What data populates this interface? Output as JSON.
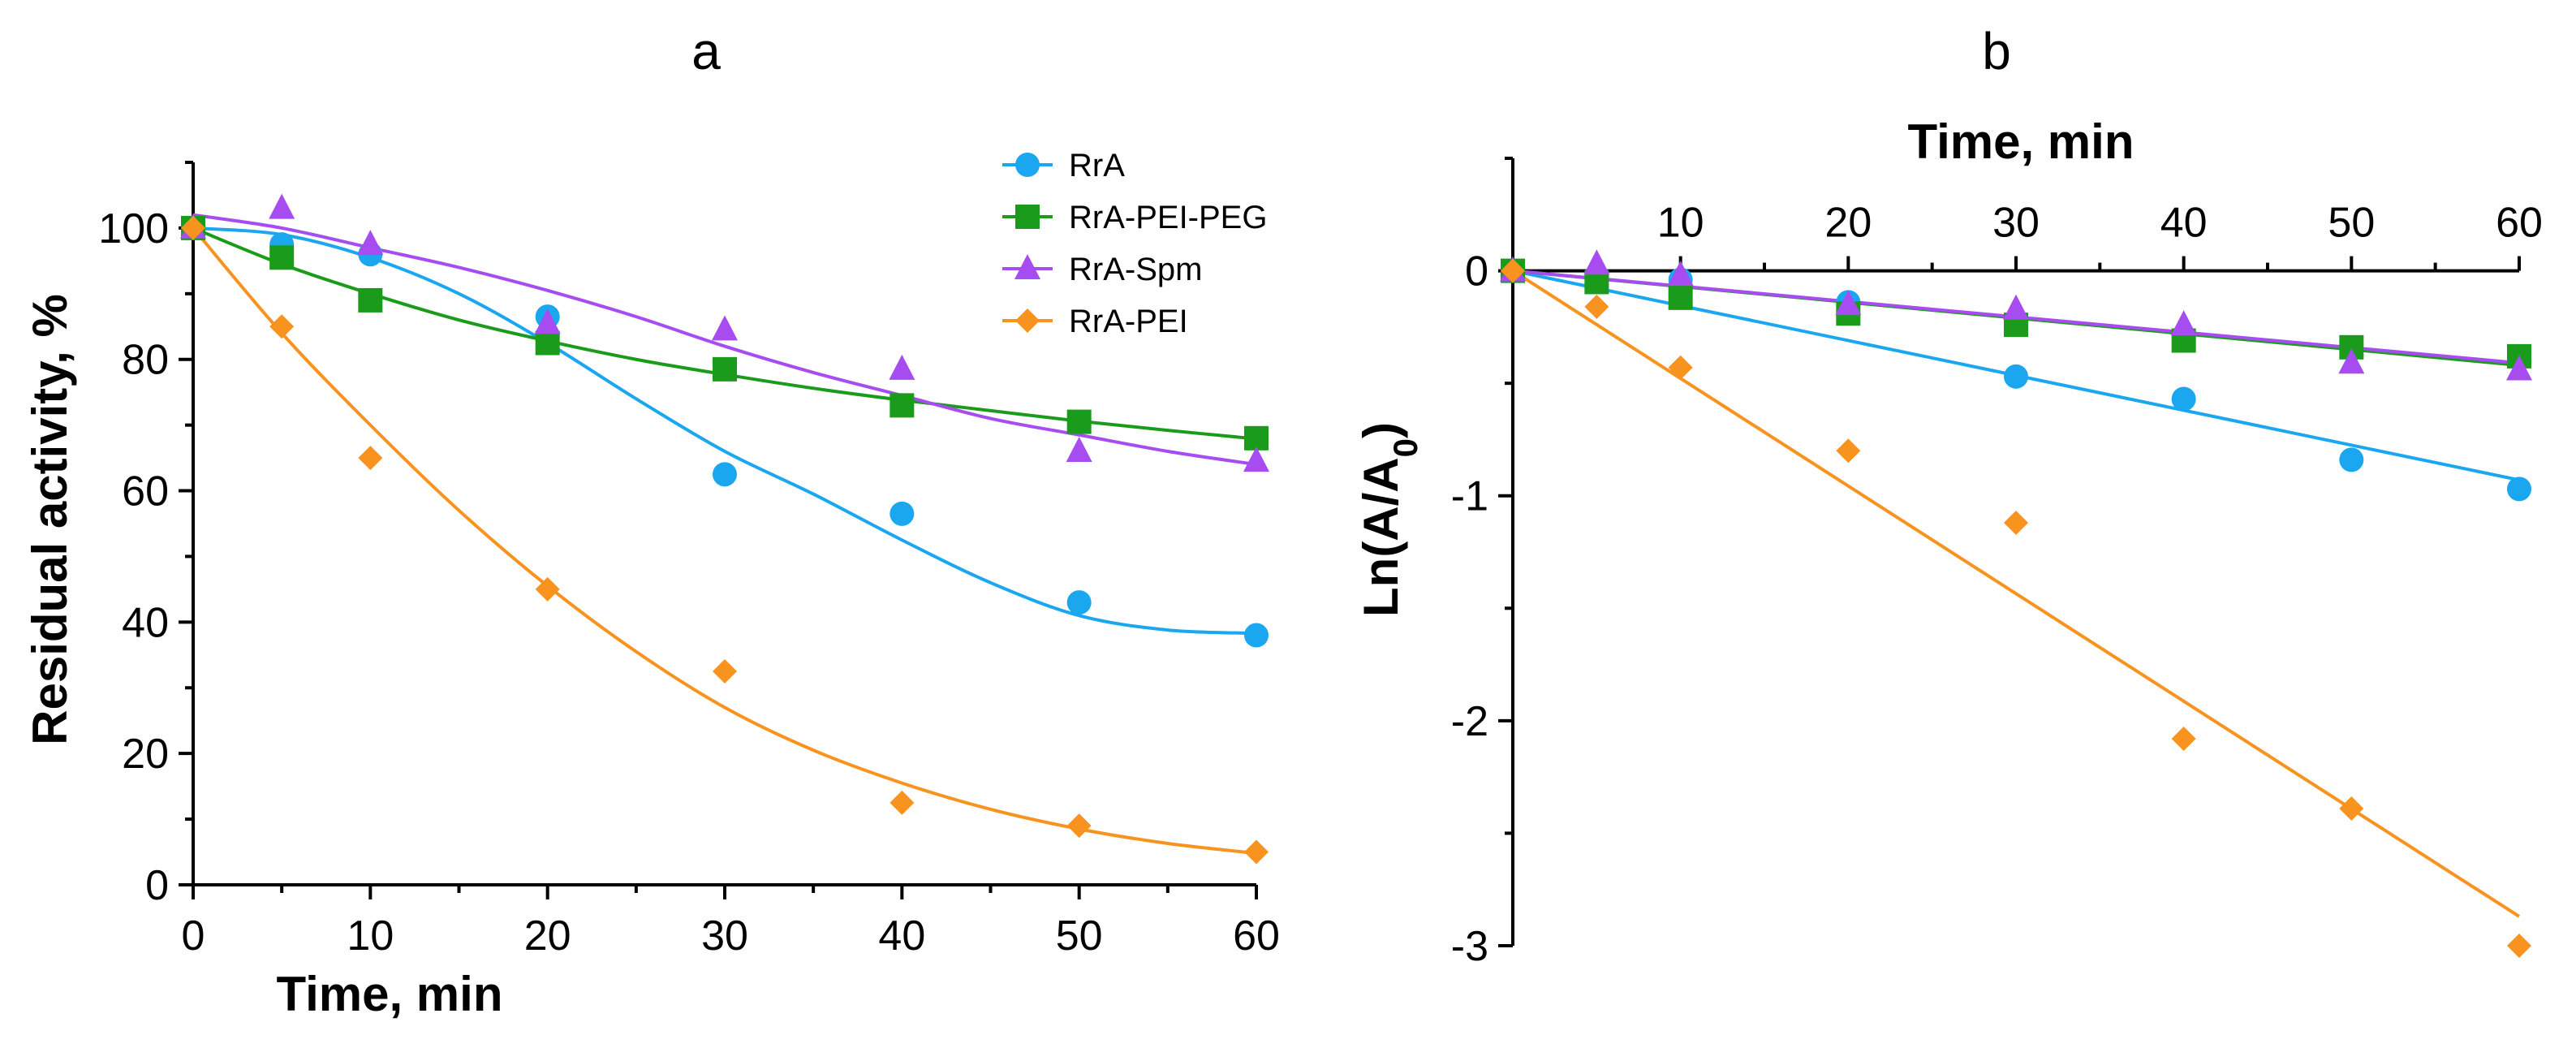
{
  "chart_data": [
    {
      "panel_label": "a",
      "type": "scatter",
      "xlabel": "Time, min",
      "ylabel": "Residual activity, %",
      "xlim": [
        0,
        60
      ],
      "ylim": [
        0,
        110
      ],
      "xticks": [
        0,
        10,
        20,
        30,
        40,
        50,
        60
      ],
      "yticks": [
        0,
        20,
        40,
        60,
        80,
        100
      ],
      "legend_position": "top-right",
      "series": [
        {
          "name": "RrA",
          "color": "#1aa7f0",
          "marker": "circle",
          "x": [
            0,
            5,
            10,
            20,
            30,
            40,
            50,
            60
          ],
          "y": [
            100,
            97.5,
            96,
            86.5,
            62.5,
            56.5,
            43,
            38
          ],
          "fit_x": [
            0,
            5,
            10,
            15,
            20,
            25,
            30,
            35,
            40,
            45,
            50,
            55,
            60
          ],
          "fit_y": [
            100,
            99,
            95.5,
            90,
            82.5,
            74,
            66,
            59.5,
            52.5,
            46,
            41,
            38.8,
            38.3
          ]
        },
        {
          "name": "RrA-PEI-PEG",
          "color": "#1b9b1b",
          "marker": "square",
          "x": [
            0,
            5,
            10,
            20,
            30,
            40,
            50,
            60
          ],
          "y": [
            100,
            95.5,
            89,
            82.5,
            78.5,
            73,
            70.5,
            68
          ],
          "fit_x": [
            0,
            5,
            10,
            15,
            20,
            25,
            30,
            35,
            40,
            45,
            50,
            55,
            60
          ],
          "fit_y": [
            100,
            94.5,
            90,
            86,
            82.8,
            80,
            77.7,
            75.6,
            73.8,
            72.2,
            70.6,
            69.2,
            67.9
          ]
        },
        {
          "name": "RrA-Spm",
          "color": "#a64cf0",
          "marker": "triangle",
          "x": [
            0,
            5,
            10,
            20,
            30,
            40,
            50,
            60
          ],
          "y": [
            100,
            103,
            97.5,
            85.5,
            84.5,
            78.5,
            66,
            64.5
          ],
          "fit_x": [
            0,
            5,
            10,
            15,
            20,
            25,
            30,
            35,
            40,
            45,
            50,
            55,
            60
          ],
          "fit_y": [
            102,
            100,
            97,
            94,
            90.5,
            86.5,
            82,
            78,
            74.5,
            71,
            68.5,
            66,
            64
          ]
        },
        {
          "name": "RrA-PEI",
          "color": "#f7931e",
          "marker": "diamond",
          "x": [
            0,
            5,
            10,
            20,
            30,
            40,
            50,
            60
          ],
          "y": [
            100,
            85,
            65,
            45,
            32.5,
            12.5,
            9,
            5
          ],
          "fit_x": [
            0,
            5,
            10,
            15,
            20,
            25,
            30,
            35,
            40,
            45,
            50,
            55,
            60
          ],
          "fit_y": [
            100,
            84,
            70,
            57,
            45.5,
            35.5,
            27,
            20.5,
            15.5,
            11.5,
            8.5,
            6.3,
            4.8
          ]
        }
      ]
    },
    {
      "panel_label": "b",
      "type": "scatter",
      "xlabel": "Time, min",
      "ylabel_main": "Ln(A/A",
      "ylabel_sub": "0",
      "ylabel_end": ")",
      "xlim": [
        0,
        60
      ],
      "ylim": [
        -3,
        0.5
      ],
      "xticks": [
        10,
        20,
        30,
        40,
        50,
        60
      ],
      "yticks": [
        0,
        -1,
        -2,
        -3
      ],
      "yticks_labels": [
        "0",
        "-1",
        "-2",
        "-3"
      ],
      "series": [
        {
          "name": "RrA",
          "color": "#1aa7f0",
          "marker": "circle",
          "x": [
            0,
            5,
            10,
            20,
            30,
            40,
            50,
            60
          ],
          "y": [
            0,
            -0.03,
            -0.04,
            -0.14,
            -0.47,
            -0.57,
            -0.84,
            -0.97
          ],
          "fit": [
            [
              0,
              0
            ],
            [
              60,
              -0.93
            ]
          ]
        },
        {
          "name": "RrA-PEI-PEG",
          "color": "#1b9b1b",
          "marker": "square",
          "x": [
            0,
            5,
            10,
            20,
            30,
            40,
            50,
            60
          ],
          "y": [
            0,
            -0.05,
            -0.12,
            -0.19,
            -0.24,
            -0.31,
            -0.34,
            -0.38
          ],
          "fit": [
            [
              0,
              0
            ],
            [
              60,
              -0.42
            ]
          ]
        },
        {
          "name": "RrA-Spm",
          "color": "#a64cf0",
          "marker": "triangle",
          "x": [
            0,
            5,
            10,
            20,
            30,
            40,
            50,
            60
          ],
          "y": [
            0,
            0.03,
            -0.02,
            -0.15,
            -0.17,
            -0.24,
            -0.41,
            -0.44
          ],
          "fit": [
            [
              0,
              0
            ],
            [
              60,
              -0.41
            ]
          ]
        },
        {
          "name": "RrA-PEI",
          "color": "#f7931e",
          "marker": "diamond",
          "x": [
            0,
            5,
            10,
            20,
            30,
            40,
            50,
            60
          ],
          "y": [
            0,
            -0.16,
            -0.43,
            -0.8,
            -1.12,
            -2.08,
            -2.39,
            -3.0
          ],
          "fit": [
            [
              0,
              0
            ],
            [
              60,
              -2.87
            ]
          ]
        }
      ]
    }
  ]
}
